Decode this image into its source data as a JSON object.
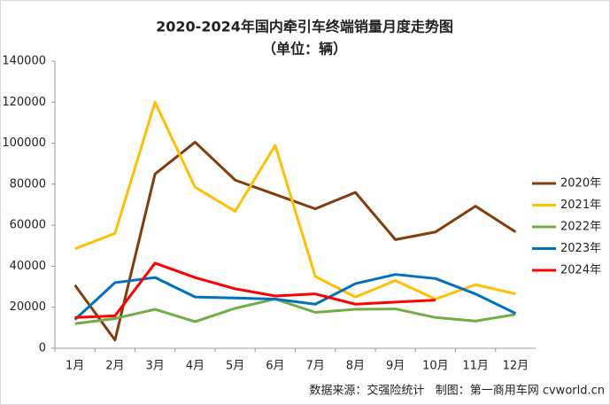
{
  "chart_data": {
    "type": "line",
    "title": "2020-2024年国内牵引车终端销量月度走势图",
    "subtitle": "（单位：辆）",
    "source": "数据来源：交强险统计   制图：第一商用车网 cvworld.cn",
    "categories": [
      "1月",
      "2月",
      "3月",
      "4月",
      "5月",
      "6月",
      "7月",
      "8月",
      "9月",
      "10月",
      "11月",
      "12月"
    ],
    "series": [
      {
        "name": "2020年",
        "color": "#843c0c",
        "values": [
          30800,
          4000,
          85000,
          100500,
          82000,
          75000,
          68000,
          76000,
          53000,
          56700,
          69300,
          56700
        ]
      },
      {
        "name": "2021年",
        "color": "#ffc000",
        "values": [
          48500,
          56000,
          120000,
          78500,
          66800,
          99000,
          35000,
          25000,
          33000,
          24000,
          31000,
          26500
        ]
      },
      {
        "name": "2022年",
        "color": "#70ad47",
        "values": [
          12000,
          14500,
          19000,
          13000,
          19500,
          24000,
          17500,
          19000,
          19200,
          15000,
          13300,
          16500
        ]
      },
      {
        "name": "2023年",
        "color": "#0070c0",
        "values": [
          14000,
          32000,
          34500,
          25000,
          24500,
          24000,
          21500,
          31500,
          36000,
          34000,
          26500,
          17000
        ]
      },
      {
        "name": "2024年",
        "color": "#ff0000",
        "values": [
          15000,
          15800,
          41500,
          34500,
          29000,
          25500,
          26500,
          21500,
          22500,
          23500,
          null,
          null
        ]
      }
    ],
    "ylim": [
      0,
      140000
    ],
    "yticks": [
      0,
      20000,
      40000,
      60000,
      80000,
      100000,
      120000,
      140000
    ],
    "legend": "right"
  }
}
